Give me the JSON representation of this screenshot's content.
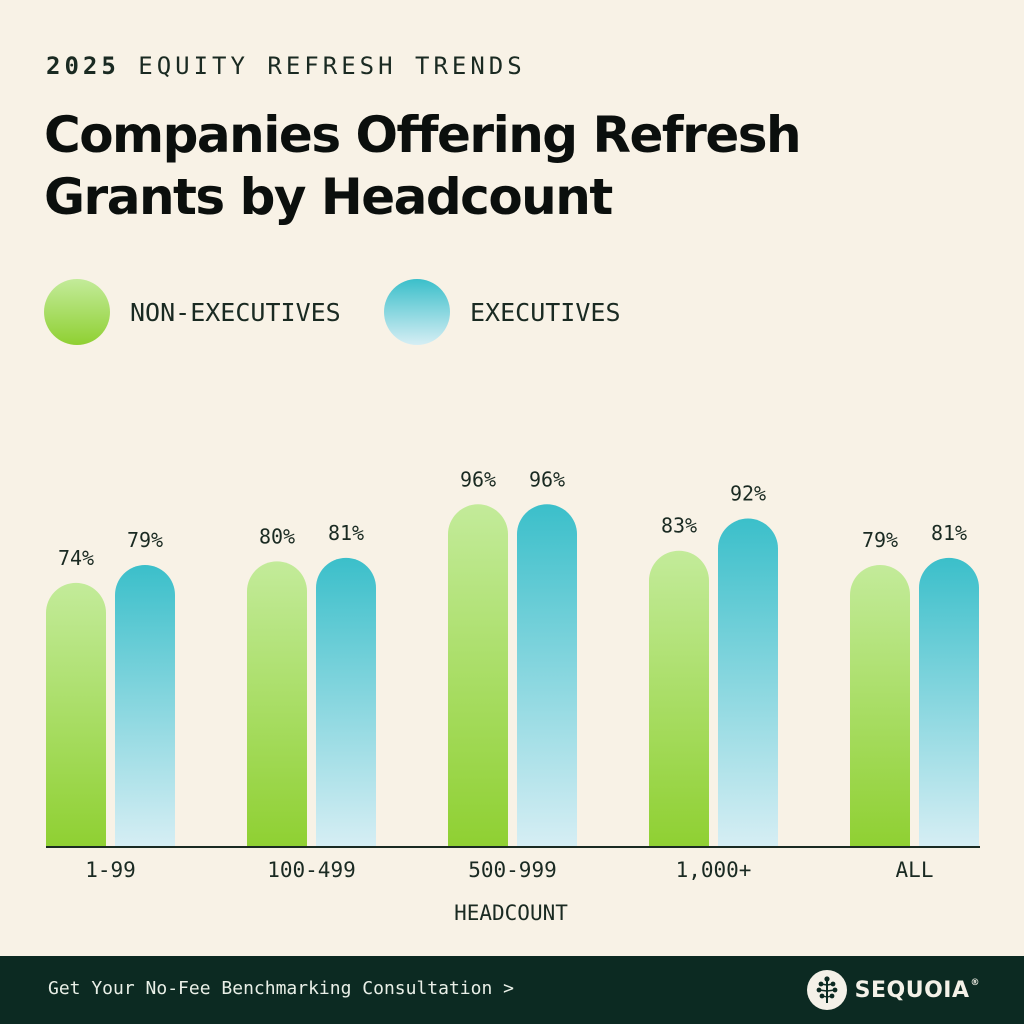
{
  "header": {
    "eyebrow_year": "2025",
    "eyebrow_text": "EQUITY REFRESH TRENDS",
    "title": "Companies Offering Refresh Grants by Headcount"
  },
  "footer": {
    "cta_label": "Get Your No-Fee Benchmarking Consultation >",
    "brand_name": "SEQUOIA",
    "brand_mark": "®",
    "brand_icon": "sequoia-tree-icon"
  },
  "colors": {
    "background": "#f8f2e6",
    "non_exec_top": "#c3eb9a",
    "non_exec_bottom": "#8fd032",
    "exec_top": "#3bbfca",
    "exec_bottom": "#d6eef4",
    "footer_bg": "#0c2a22"
  },
  "chart_data": {
    "type": "bar",
    "title": "Companies Offering Refresh Grants by Headcount",
    "xlabel": "HEADCOUNT",
    "ylabel": "",
    "ylim": [
      0,
      100
    ],
    "grid": false,
    "legend_position": "top-left",
    "categories": [
      "1-99",
      "100-499",
      "500-999",
      "1,000+",
      "ALL"
    ],
    "series": [
      {
        "name": "NON-EXECUTIVES",
        "values": [
          74,
          80,
          96,
          83,
          79
        ],
        "labels": [
          "74%",
          "80%",
          "96%",
          "83%",
          "79%"
        ]
      },
      {
        "name": "EXECUTIVES",
        "values": [
          79,
          81,
          96,
          92,
          81
        ],
        "labels": [
          "79%",
          "81%",
          "96%",
          "92%",
          "81%"
        ]
      }
    ]
  }
}
